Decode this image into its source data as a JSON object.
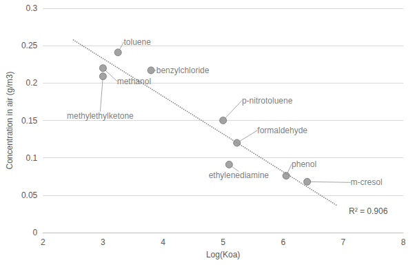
{
  "chart_data": {
    "type": "scatter",
    "x_label": "Log(Koa)",
    "y_label": "Concentration in air (g/m3)",
    "labels": [
      "toluene",
      "methanol",
      "methylethylketone",
      "benzylchloride",
      "p-nitrotoluene",
      "formaldehyde",
      "ethylenediamine",
      "phenol",
      "m-cresol"
    ],
    "x": [
      3.25,
      3.0,
      3.0,
      3.8,
      5.0,
      5.23,
      5.1,
      6.05,
      6.4
    ],
    "values": [
      0.241,
      0.22,
      0.209,
      0.217,
      0.15,
      0.12,
      0.091,
      0.076,
      0.068
    ],
    "color": "#8c8c8c",
    "marker": "circle",
    "trendline": {
      "x": [
        2.5,
        6.9
      ],
      "values": [
        0.258,
        0.036
      ],
      "line_style": "dotted",
      "color": "#7f7f7f"
    },
    "annotations": [
      "R² = 0.906"
    ],
    "xlim": [
      2,
      8
    ],
    "xticks": [
      2,
      3,
      4,
      5,
      6,
      7,
      8
    ],
    "ylim": [
      0,
      0.3
    ],
    "yticks": [
      0,
      0.05,
      0.1,
      0.15,
      0.2,
      0.25,
      0.3
    ],
    "grid": "y"
  }
}
